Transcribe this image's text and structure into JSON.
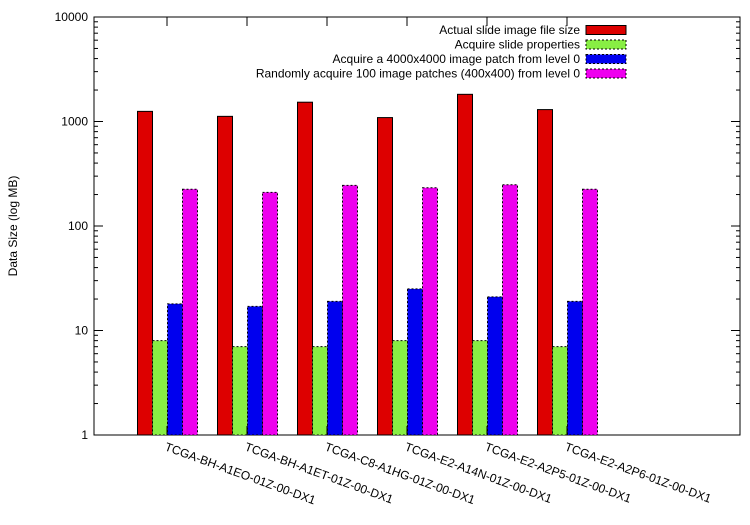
{
  "colors": {
    "actual": "#dd0000",
    "properties": "#88ee44",
    "patch": "#0000ee",
    "random": "#ee00ee",
    "axis": "#000000"
  },
  "chart_data": {
    "type": "bar",
    "title": "",
    "xlabel": "",
    "ylabel": "Data Size (log MB)",
    "yscale": "log",
    "ylim": [
      1,
      10000
    ],
    "yticks": [
      1,
      10,
      100,
      1000,
      10000
    ],
    "ytick_labels": [
      "1",
      "10",
      "100",
      "1000",
      "10000"
    ],
    "grid": false,
    "legend_position": "top-right",
    "categories": [
      "TCGA-BH-A1EO-01Z-00-DX1",
      "TCGA-BH-A1ET-01Z-00-DX1",
      "TCGA-C8-A1HG-01Z-00-DX1",
      "TCGA-E2-A14N-01Z-00-DX1",
      "TCGA-E2-A2P5-01Z-00-DX1",
      "TCGA-E2-A2P6-01Z-00-DX1"
    ],
    "series": [
      {
        "name": "Actual slide image file size",
        "color_key": "actual",
        "values": [
          1250,
          1120,
          1530,
          1090,
          1820,
          1300
        ]
      },
      {
        "name": "Acquire slide properties",
        "color_key": "properties",
        "values": [
          8,
          7,
          7,
          8,
          8,
          7
        ]
      },
      {
        "name": "Acquire a 4000x4000 image patch from level 0",
        "color_key": "patch",
        "values": [
          18,
          17,
          19,
          25,
          21,
          19
        ]
      },
      {
        "name": "Randomly acquire 100 image patches (400x400) from level 0",
        "color_key": "random",
        "values": [
          225,
          210,
          245,
          232,
          248,
          225
        ]
      }
    ]
  }
}
